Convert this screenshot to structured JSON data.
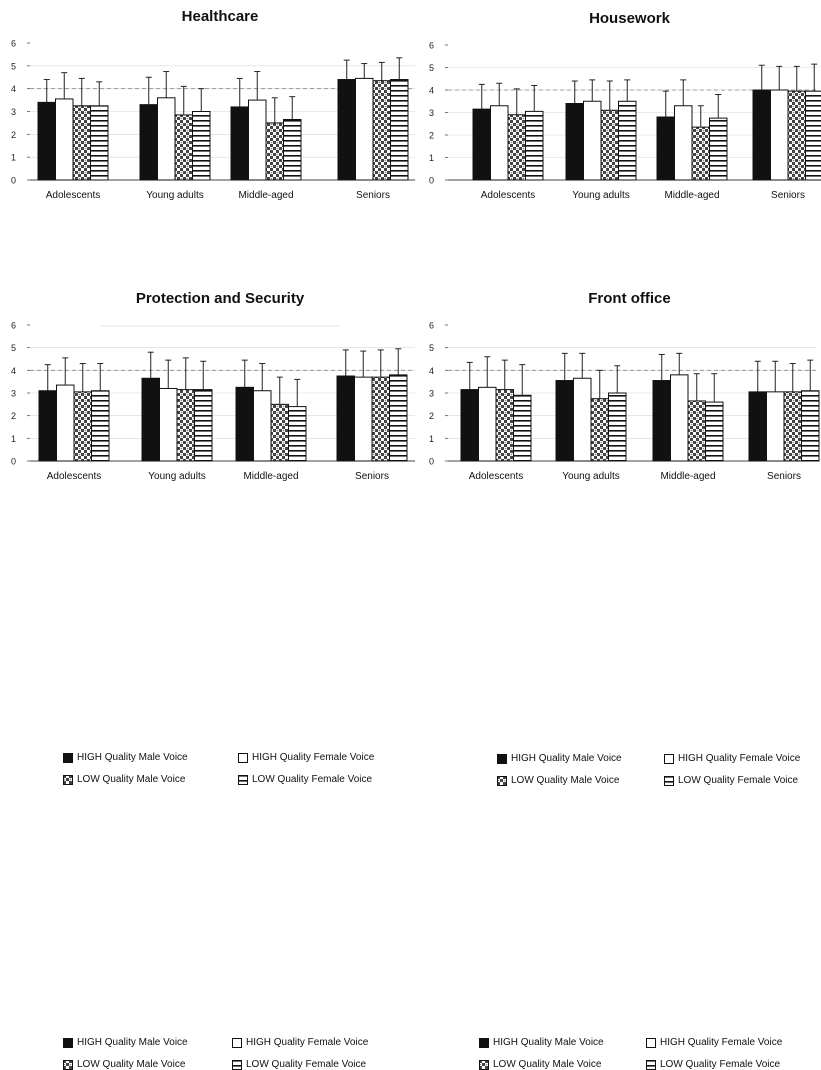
{
  "chart_data": [
    {
      "type": "bar",
      "title": "Healthcare",
      "categories": [
        "Adolescents",
        "Young adults",
        "Middle-aged",
        "Seniors"
      ],
      "ylim": [
        0,
        6
      ],
      "yticks": [
        "0",
        "1",
        "2",
        "3",
        "4",
        "5",
        "6"
      ],
      "error_bars": true,
      "series": [
        {
          "name": "HIGH Quality Male Voice",
          "values": [
            3.4,
            3.3,
            3.2,
            4.4
          ],
          "errors": [
            1.0,
            1.2,
            1.25,
            0.85
          ]
        },
        {
          "name": "HIGH Quality Female Voice",
          "values": [
            3.55,
            3.6,
            3.5,
            4.45
          ],
          "errors": [
            1.15,
            1.15,
            1.25,
            0.65
          ]
        },
        {
          "name": "LOW Quality Male Voice",
          "values": [
            3.25,
            2.85,
            2.5,
            4.35
          ],
          "errors": [
            1.2,
            1.25,
            1.1,
            0.8
          ]
        },
        {
          "name": "LOW Quality Female Voice",
          "values": [
            3.25,
            3.0,
            2.65,
            4.4
          ],
          "errors": [
            1.05,
            1.0,
            1.0,
            0.95
          ]
        }
      ],
      "legend_position": "bottom"
    },
    {
      "type": "bar",
      "title": "Housework",
      "categories": [
        "Adolescents",
        "Young adults",
        "Middle-aged",
        "Seniors"
      ],
      "ylim": [
        0,
        6
      ],
      "yticks": [
        "0",
        "1",
        "2",
        "3",
        "4",
        "5",
        "6"
      ],
      "error_bars": true,
      "series": [
        {
          "name": "HIGH Quality Male Voice",
          "values": [
            3.15,
            3.4,
            2.8,
            4.0
          ],
          "errors": [
            1.1,
            1.0,
            1.15,
            1.1
          ]
        },
        {
          "name": "HIGH Quality Female Voice",
          "values": [
            3.3,
            3.5,
            3.3,
            4.0
          ],
          "errors": [
            1.0,
            0.95,
            1.15,
            1.05
          ]
        },
        {
          "name": "LOW Quality Male Voice",
          "values": [
            2.9,
            3.1,
            2.35,
            3.95
          ],
          "errors": [
            1.15,
            1.3,
            0.95,
            1.1
          ]
        },
        {
          "name": "LOW Quality Female Voice",
          "values": [
            3.05,
            3.5,
            2.75,
            3.95
          ],
          "errors": [
            1.15,
            0.95,
            1.05,
            1.2
          ]
        }
      ],
      "legend_position": "bottom"
    },
    {
      "type": "bar",
      "title": "Protection and Security",
      "categories": [
        "Adolescents",
        "Young adults",
        "Middle-aged",
        "Seniors"
      ],
      "ylim": [
        0,
        6
      ],
      "yticks": [
        "0",
        "1",
        "2",
        "3",
        "4",
        "5",
        "6"
      ],
      "error_bars": true,
      "series": [
        {
          "name": "HIGH Quality Male Voice",
          "values": [
            3.1,
            3.65,
            3.25,
            3.75
          ],
          "errors": [
            1.15,
            1.15,
            1.2,
            1.15
          ]
        },
        {
          "name": "HIGH Quality Female Voice",
          "values": [
            3.35,
            3.2,
            3.1,
            3.7
          ],
          "errors": [
            1.2,
            1.25,
            1.2,
            1.15
          ]
        },
        {
          "name": "LOW Quality Male Voice",
          "values": [
            3.05,
            3.15,
            2.5,
            3.7
          ],
          "errors": [
            1.25,
            1.4,
            1.2,
            1.2
          ]
        },
        {
          "name": "LOW Quality Female Voice",
          "values": [
            3.1,
            3.15,
            2.4,
            3.8
          ],
          "errors": [
            1.2,
            1.25,
            1.2,
            1.15
          ]
        }
      ],
      "legend_position": "bottom"
    },
    {
      "type": "bar",
      "title": "Front office",
      "categories": [
        "Adolescents",
        "Young adults",
        "Middle-aged",
        "Seniors"
      ],
      "ylim": [
        0,
        6
      ],
      "yticks": [
        "0",
        "1",
        "2",
        "3",
        "4",
        "5",
        "6"
      ],
      "error_bars": true,
      "series": [
        {
          "name": "HIGH Quality Male Voice",
          "values": [
            3.15,
            3.55,
            3.55,
            3.05
          ],
          "errors": [
            1.2,
            1.2,
            1.15,
            1.35
          ]
        },
        {
          "name": "HIGH Quality Female Voice",
          "values": [
            3.25,
            3.65,
            3.8,
            3.05
          ],
          "errors": [
            1.35,
            1.1,
            0.95,
            1.35
          ]
        },
        {
          "name": "LOW Quality Male Voice",
          "values": [
            3.15,
            2.75,
            2.65,
            3.05
          ],
          "errors": [
            1.3,
            1.25,
            1.2,
            1.25
          ]
        },
        {
          "name": "LOW Quality Female Voice",
          "values": [
            2.9,
            3.0,
            2.6,
            3.1
          ],
          "errors": [
            1.35,
            1.2,
            1.25,
            1.35
          ]
        }
      ],
      "legend_position": "bottom"
    }
  ]
}
